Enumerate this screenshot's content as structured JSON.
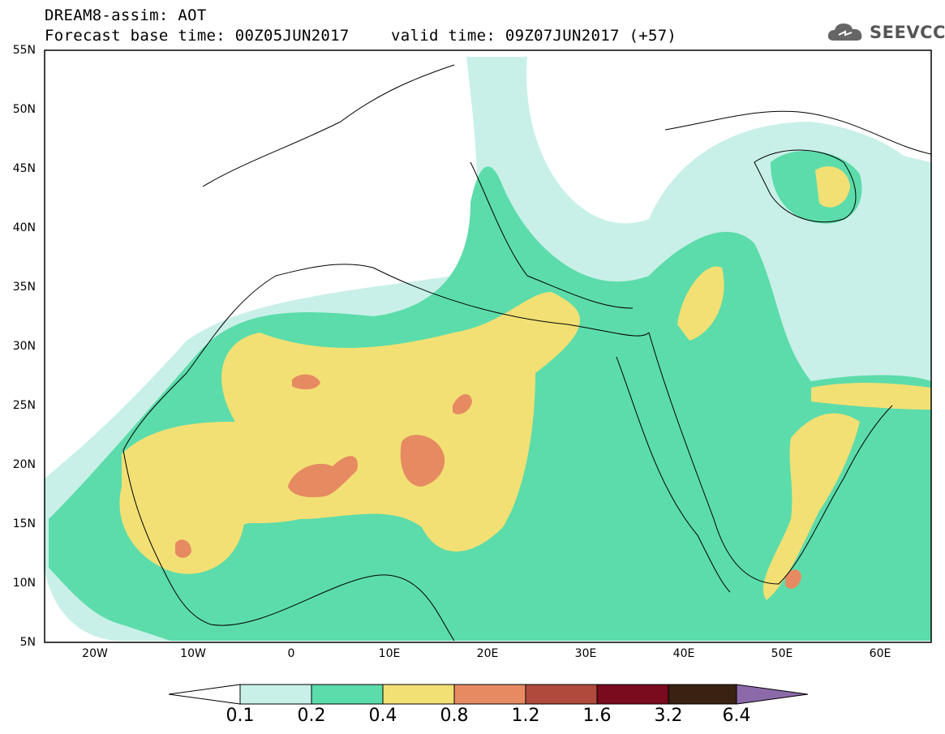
{
  "header": {
    "line1": "DREAM8-assim: AOT",
    "line2": "Forecast base time: 00Z05JUN2017",
    "line3": "valid time: 09Z07JUN2017 (+57)",
    "logo_text": "SEEVCCC"
  },
  "axes": {
    "lat_labels": [
      "55N",
      "50N",
      "45N",
      "40N",
      "35N",
      "30N",
      "25N",
      "20N",
      "15N",
      "10N",
      "5N"
    ],
    "lon_labels": [
      "20W",
      "10W",
      "0",
      "10E",
      "20E",
      "30E",
      "40E",
      "50E",
      "60E"
    ]
  },
  "colorbar": {
    "labels": [
      "0.1",
      "0.2",
      "0.4",
      "0.8",
      "1.2",
      "1.6",
      "3.2",
      "6.4"
    ],
    "colors": [
      "#c8f0e8",
      "#5cdcaa",
      "#f2e074",
      "#e68a62",
      "#b04a3c",
      "#7a0a1e",
      "#3a2212",
      "#8c6aaa"
    ]
  }
}
